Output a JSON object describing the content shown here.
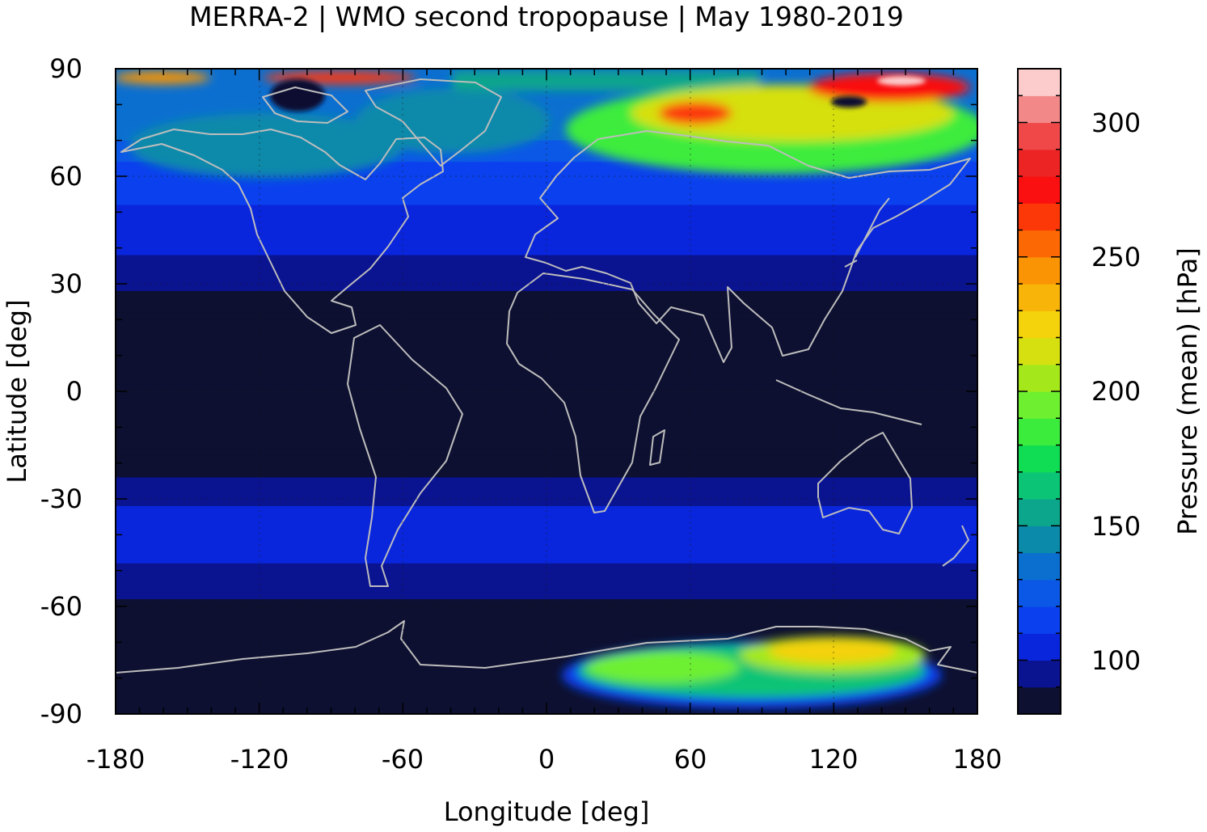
{
  "title": "MERRA-2 | WMO second tropopause | May 1980-2019",
  "axes": {
    "xlabel": "Longitude [deg]",
    "ylabel": "Latitude [deg]",
    "xticks": [
      "-180",
      "-120",
      "-60",
      "0",
      "60",
      "120",
      "180"
    ],
    "yticks": [
      "90",
      "60",
      "30",
      "0",
      "-30",
      "-60",
      "-90"
    ],
    "xrange": [
      -180,
      180
    ],
    "yrange": [
      -90,
      90
    ]
  },
  "colorbar": {
    "label": "Pressure (mean) [hPa]",
    "ticks": [
      "100",
      "150",
      "200",
      "250",
      "300"
    ],
    "range": [
      80,
      320
    ],
    "colors": [
      "#0d1030",
      "#0a1390",
      "#0a26dc",
      "#0a40ee",
      "#0b58e6",
      "#0b6fd0",
      "#0b8aaa",
      "#0ca68c",
      "#0cc476",
      "#10dc54",
      "#3cec3c",
      "#6ef030",
      "#a4e81c",
      "#d6e010",
      "#f4d20c",
      "#f8b408",
      "#fa9404",
      "#fc6804",
      "#fc3808",
      "#fa1010",
      "#ec2424",
      "#f04848",
      "#f28888",
      "#fccccc"
    ]
  },
  "chart_data": {
    "type": "heatmap",
    "title": "MERRA-2 | WMO second tropopause | May 1980-2019",
    "xlabel": "Longitude [deg]",
    "ylabel": "Latitude [deg]",
    "xlim": [
      -180,
      180
    ],
    "ylim": [
      -90,
      90
    ],
    "colorbar_label": "Pressure (mean) [hPa]",
    "colorbar_range": [
      80,
      320
    ],
    "zonal_profile": [
      {
        "lat": 90,
        "value": 130
      },
      {
        "lat": 80,
        "value": 140
      },
      {
        "lat": 70,
        "value": 130
      },
      {
        "lat": 60,
        "value": 115
      },
      {
        "lat": 50,
        "value": 108
      },
      {
        "lat": 40,
        "value": 102
      },
      {
        "lat": 30,
        "value": 92
      },
      {
        "lat": 20,
        "value": 85
      },
      {
        "lat": 0,
        "value": 80
      },
      {
        "lat": -20,
        "value": 85
      },
      {
        "lat": -30,
        "value": 98
      },
      {
        "lat": -40,
        "value": 105
      },
      {
        "lat": -50,
        "value": 98
      },
      {
        "lat": -60,
        "value": 88
      },
      {
        "lat": -70,
        "value": 83
      },
      {
        "lat": -80,
        "value": 85
      },
      {
        "lat": -90,
        "value": 90
      }
    ],
    "features": [
      {
        "region": "Arctic east (lon 70 to 180, lat 62 to 90)",
        "value": 230,
        "peak": 320
      },
      {
        "region": "Arctic north Greenland (lon -80 to -50, lat 82 to 90)",
        "value": 300
      },
      {
        "region": "Antarctic plateau (lon 10 to 160, lat -72 to -86)",
        "value": 150,
        "peak": 210
      }
    ]
  }
}
